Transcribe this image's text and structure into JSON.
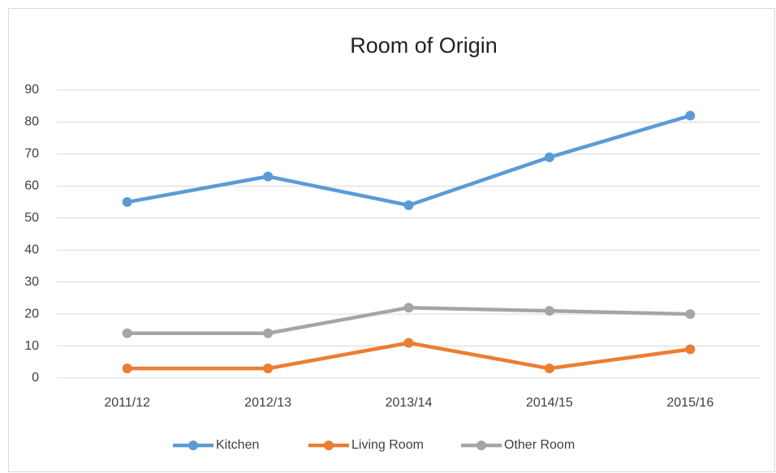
{
  "chart_data": {
    "type": "line",
    "title": "Room of Origin",
    "categories": [
      "2011/12",
      "2012/13",
      "2013/14",
      "2014/15",
      "2015/16"
    ],
    "series": [
      {
        "name": "Kitchen",
        "color": "#5b9bd5",
        "values": [
          55,
          63,
          54,
          69,
          82
        ]
      },
      {
        "name": "Living Room",
        "color": "#ed7d31",
        "values": [
          3,
          3,
          11,
          3,
          9
        ]
      },
      {
        "name": "Other Room",
        "color": "#a5a5a5",
        "values": [
          14,
          14,
          22,
          21,
          20
        ]
      }
    ],
    "ylim": [
      0,
      90
    ],
    "yticks": [
      0,
      10,
      20,
      30,
      40,
      50,
      60,
      70,
      80,
      90
    ],
    "grid": true,
    "legend": "bottom"
  }
}
